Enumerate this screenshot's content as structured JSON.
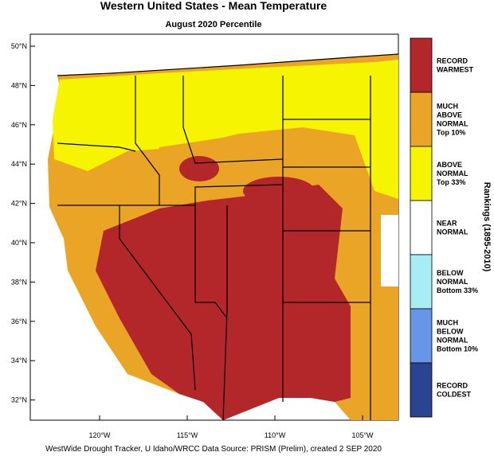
{
  "title": "Western United States - Mean Temperature",
  "subtitle": "August 2020 Percentile",
  "latitude_labels": [
    "50°N",
    "48°N",
    "46°N",
    "44°N",
    "42°N",
    "40°N",
    "38°N",
    "36°N",
    "34°N",
    "32°N"
  ],
  "longitude_labels": [
    "120°W",
    "115°W",
    "110°W",
    "105°W"
  ],
  "legend": {
    "title": "Rankings (1895-2010)",
    "items": [
      {
        "lines": [
          "RECORD",
          "WARMEST"
        ],
        "color": "#b3262a"
      },
      {
        "lines": [
          "MUCH",
          "ABOVE",
          "NORMAL",
          "Top 10%"
        ],
        "color": "#eaa526"
      },
      {
        "lines": [
          "ABOVE",
          "NORMAL",
          "Top 33%"
        ],
        "color": "#f7f400"
      },
      {
        "lines": [
          "NEAR",
          "NORMAL"
        ],
        "color": "#ffffff"
      },
      {
        "lines": [
          "BELOW",
          "NORMAL",
          "Bottom 33%"
        ],
        "color": "#a6eef4"
      },
      {
        "lines": [
          "MUCH",
          "BELOW",
          "NORMAL",
          "Bottom 10%"
        ],
        "color": "#6896e6"
      },
      {
        "lines": [
          "RECORD",
          "COLDEST"
        ],
        "color": "#2b4490"
      }
    ]
  },
  "footer": "WestWide Drought Tracker, U Idaho/WRCC Data Source: PRISM (Prelim), created  2 SEP 2020"
}
